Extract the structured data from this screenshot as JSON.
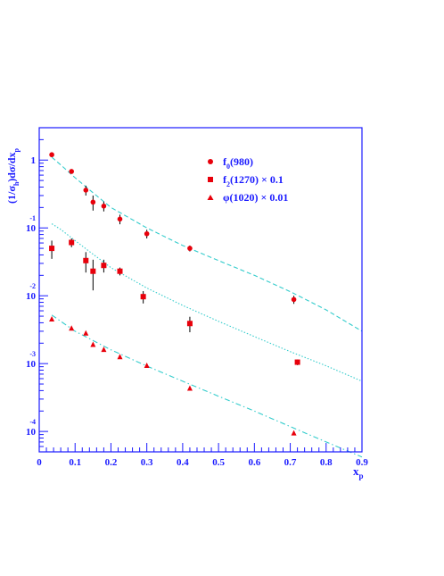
{
  "chart_data": {
    "type": "scatter",
    "title": "",
    "xlabel": "x",
    "xlabel_sub": "p",
    "ylabel": "(1/σ",
    "ylabel_sub": "h",
    "ylabel_rest": ")dσ/dx",
    "ylabel_sub2": "p",
    "xlim": [
      0,
      0.9
    ],
    "ylim": [
      5e-05,
      3
    ],
    "yscale": "log",
    "grid": false,
    "legend_position": "top-right",
    "x_ticks": [
      {
        "value": 0,
        "label": "0"
      },
      {
        "value": 0.1,
        "label": "0.1"
      },
      {
        "value": 0.2,
        "label": "0.2"
      },
      {
        "value": 0.3,
        "label": "0.3"
      },
      {
        "value": 0.4,
        "label": "0.4"
      },
      {
        "value": 0.5,
        "label": "0.5"
      },
      {
        "value": 0.6,
        "label": "0.6"
      },
      {
        "value": 0.7,
        "label": "0.7"
      },
      {
        "value": 0.8,
        "label": "0.8"
      },
      {
        "value": 0.9,
        "label": "0.9"
      }
    ],
    "y_ticks": [
      {
        "value": 1,
        "base": "1",
        "exp": ""
      },
      {
        "value": 0.1,
        "base": "10",
        "exp": "-1"
      },
      {
        "value": 0.01,
        "base": "10",
        "exp": "-2"
      },
      {
        "value": 0.001,
        "base": "10",
        "exp": "-3"
      },
      {
        "value": 0.0001,
        "base": "10",
        "exp": "-4"
      }
    ],
    "series": [
      {
        "name": "f",
        "name_sub": "0",
        "name_rest": "(980)",
        "marker": "circle",
        "color": "#e8000b",
        "points": [
          {
            "x": 0.035,
            "y": 1.2,
            "err": 0.06
          },
          {
            "x": 0.09,
            "y": 0.68,
            "err": 0.04
          },
          {
            "x": 0.13,
            "y": 0.36,
            "err": 0.06
          },
          {
            "x": 0.15,
            "y": 0.24,
            "err": 0.06
          },
          {
            "x": 0.18,
            "y": 0.21,
            "err": 0.035
          },
          {
            "x": 0.225,
            "y": 0.135,
            "err": 0.022
          },
          {
            "x": 0.3,
            "y": 0.082,
            "err": 0.012
          },
          {
            "x": 0.42,
            "y": 0.05,
            "err": 0.005
          },
          {
            "x": 0.71,
            "y": 0.0088,
            "err": 0.0012
          }
        ]
      },
      {
        "name": "f",
        "name_sub": "2",
        "name_rest": "(1270) × 0.1",
        "marker": "square",
        "color": "#e8000b",
        "points": [
          {
            "x": 0.035,
            "y": 0.05,
            "err": 0.015
          },
          {
            "x": 0.09,
            "y": 0.061,
            "err": 0.009
          },
          {
            "x": 0.13,
            "y": 0.033,
            "err": 0.011
          },
          {
            "x": 0.15,
            "y": 0.023,
            "err": 0.011
          },
          {
            "x": 0.18,
            "y": 0.028,
            "err": 0.006
          },
          {
            "x": 0.225,
            "y": 0.023,
            "err": 0.003
          },
          {
            "x": 0.29,
            "y": 0.0097,
            "err": 0.002
          },
          {
            "x": 0.42,
            "y": 0.0039,
            "err": 0.001
          },
          {
            "x": 0.72,
            "y": 0.00105,
            "err": 0.0001
          }
        ]
      },
      {
        "name": "φ",
        "name_sub": "",
        "name_rest": "(1020) × 0.01",
        "marker": "triangle",
        "color": "#e8000b",
        "points": [
          {
            "x": 0.035,
            "y": 0.0045
          },
          {
            "x": 0.09,
            "y": 0.0033
          },
          {
            "x": 0.13,
            "y": 0.0028
          },
          {
            "x": 0.15,
            "y": 0.0019
          },
          {
            "x": 0.18,
            "y": 0.0016
          },
          {
            "x": 0.225,
            "y": 0.00125
          },
          {
            "x": 0.3,
            "y": 0.00093
          },
          {
            "x": 0.42,
            "y": 0.00043
          },
          {
            "x": 0.71,
            "y": 9.4e-05
          }
        ]
      }
    ],
    "curves": [
      {
        "color": "#33cccc",
        "style": "dashed",
        "points": [
          {
            "x": 0.035,
            "y": 1.1
          },
          {
            "x": 0.06,
            "y": 0.85
          },
          {
            "x": 0.1,
            "y": 0.55
          },
          {
            "x": 0.15,
            "y": 0.33
          },
          {
            "x": 0.2,
            "y": 0.2
          },
          {
            "x": 0.3,
            "y": 0.1
          },
          {
            "x": 0.4,
            "y": 0.055
          },
          {
            "x": 0.5,
            "y": 0.033
          },
          {
            "x": 0.6,
            "y": 0.02
          },
          {
            "x": 0.7,
            "y": 0.0115
          },
          {
            "x": 0.8,
            "y": 0.0062
          },
          {
            "x": 0.9,
            "y": 0.003
          }
        ]
      },
      {
        "color": "#33cccc",
        "style": "dotted",
        "points": [
          {
            "x": 0.035,
            "y": 0.115
          },
          {
            "x": 0.06,
            "y": 0.095
          },
          {
            "x": 0.1,
            "y": 0.065
          },
          {
            "x": 0.15,
            "y": 0.041
          },
          {
            "x": 0.2,
            "y": 0.026
          },
          {
            "x": 0.3,
            "y": 0.013
          },
          {
            "x": 0.4,
            "y": 0.0072
          },
          {
            "x": 0.5,
            "y": 0.0042
          },
          {
            "x": 0.6,
            "y": 0.0025
          },
          {
            "x": 0.7,
            "y": 0.0015
          },
          {
            "x": 0.8,
            "y": 0.00093
          },
          {
            "x": 0.9,
            "y": 0.00055
          }
        ]
      },
      {
        "color": "#33cccc",
        "style": "dashdot",
        "points": [
          {
            "x": 0.035,
            "y": 0.0052
          },
          {
            "x": 0.1,
            "y": 0.003
          },
          {
            "x": 0.2,
            "y": 0.0016
          },
          {
            "x": 0.3,
            "y": 0.00092
          },
          {
            "x": 0.4,
            "y": 0.00055
          },
          {
            "x": 0.5,
            "y": 0.00033
          },
          {
            "x": 0.6,
            "y": 0.0002
          },
          {
            "x": 0.7,
            "y": 0.000118
          },
          {
            "x": 0.8,
            "y": 7e-05
          },
          {
            "x": 0.9,
            "y": 4.2e-05
          }
        ]
      }
    ]
  },
  "colors": {
    "axis": "#1a1aff",
    "marker": "#e8000b",
    "curve": "#33cccc"
  }
}
